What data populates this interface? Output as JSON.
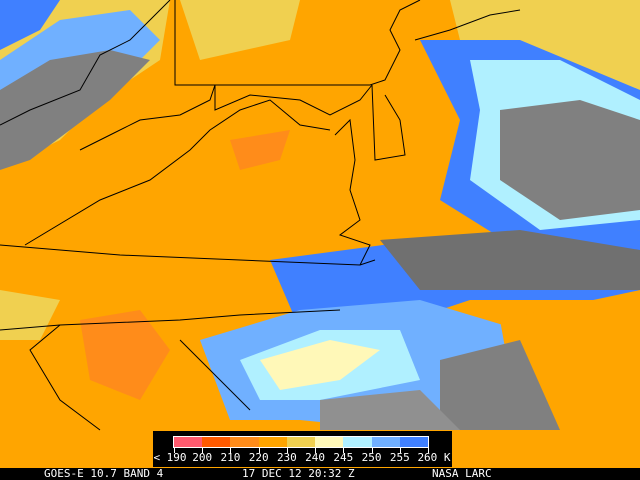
{
  "legend": {
    "colors": [
      "#ff5a6e",
      "#ff5a00",
      "#ff8c1a",
      "#ffa500",
      "#f0d050",
      "#fff8b8",
      "#b0f0ff",
      "#70b0ff",
      "#4080ff"
    ],
    "labels": [
      "< 190",
      "200",
      "210",
      "220",
      "230",
      "240",
      "245",
      "250",
      "255",
      "260 K"
    ]
  },
  "footer": {
    "satellite": "GOES-E 10.7 BAND 4",
    "datetime": "17 DEC 12 20:32 Z",
    "source": "NASA LARC"
  }
}
